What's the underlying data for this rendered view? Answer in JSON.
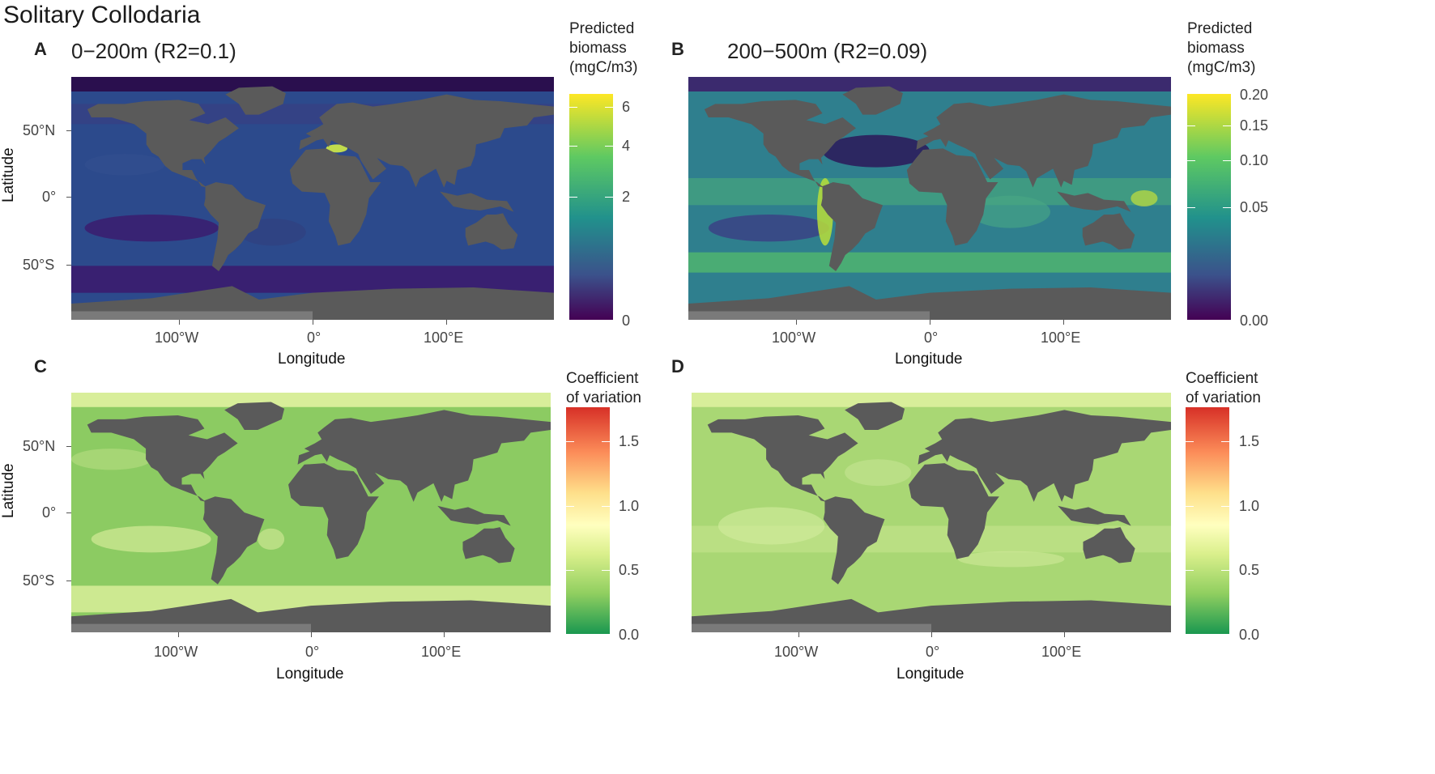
{
  "figure_title": "Solitary Collodaria",
  "panels": {
    "A": {
      "letter": "A",
      "title": "0−200m (R2=0.1)"
    },
    "B": {
      "letter": "B",
      "title": "200−500m (R2=0.09)"
    },
    "C": {
      "letter": "C",
      "title": ""
    },
    "D": {
      "letter": "D",
      "title": ""
    }
  },
  "legends": {
    "biomass": {
      "title_lines": [
        "Predicted",
        "biomass",
        "(mgC/m3)"
      ],
      "colors": [
        "#440154",
        "#3b528b",
        "#21918c",
        "#5ec962",
        "#fde725"
      ]
    },
    "cv": {
      "title_lines": [
        "Coefficient",
        "of variation"
      ],
      "colors": [
        "#1a9850",
        "#91cf60",
        "#d9ef8b",
        "#ffffbf",
        "#fee08b",
        "#fc8d59",
        "#d73027"
      ],
      "ticks": [
        "0.0",
        "0.5",
        "1.0",
        "1.5"
      ]
    },
    "biomass_A_ticks": [
      "0",
      "2",
      "4",
      "6"
    ],
    "biomass_B_ticks": [
      "0.00",
      "0.05",
      "0.10",
      "0.15",
      "0.20"
    ]
  },
  "axes": {
    "xlabel": "Longitude",
    "ylabel": "Latitude",
    "xticks": [
      "100°W",
      "0°",
      "100°E"
    ],
    "yticks": [
      "50°N",
      "0°",
      "50°S"
    ]
  },
  "map_colors": {
    "land": "#5a5a5a",
    "ice": "#7a7a7a",
    "ocean_A": "#2c4a8c",
    "ocean_A_low": "#3b1c6e",
    "ocean_B": "#2f7f8e",
    "ocean_B_high": "#5ec962",
    "ocean_C": "#8ccb62",
    "ocean_C_high": "#d8ee9a",
    "ocean_D": "#a9d774",
    "ocean_D_high": "#d8ee9a"
  }
}
